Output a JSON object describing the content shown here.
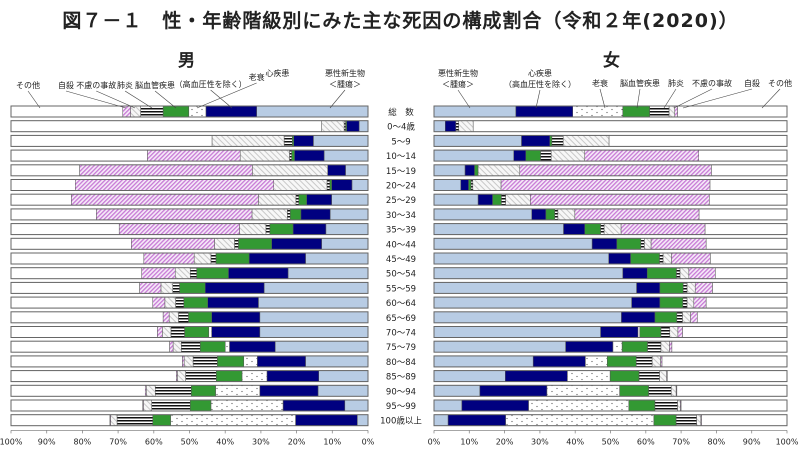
{
  "title": "図７－１　性・年齢階級別にみた主な死因の構成割合（令和２年(2020)）",
  "chart_data": {
    "type": "bar",
    "stacked": true,
    "orientation": "horizontal",
    "title": "図７－１　性・年齢階級別にみた主な死因の構成割合（令和２年(2020)）",
    "categories": [
      "総　数",
      "0～4歳",
      "5～9",
      "10～14",
      "15～19",
      "20～24",
      "25～29",
      "30～34",
      "35～39",
      "40～44",
      "45～49",
      "50～54",
      "55～59",
      "60～64",
      "65～69",
      "70～74",
      "75～79",
      "80～84",
      "85～89",
      "90～94",
      "95～99",
      "100歳以上"
    ],
    "causes": [
      {
        "key": "cancer",
        "label_lines": [
          "悪性新生物",
          "＜腫瘍＞"
        ],
        "color": "#b8cce4",
        "pattern": "solid"
      },
      {
        "key": "heart",
        "label_lines": [
          "心疾患",
          "（高血圧性を除く）"
        ],
        "color": "#000080",
        "pattern": "solid"
      },
      {
        "key": "senility",
        "label_lines": [
          "老衰"
        ],
        "color": "#ffffff",
        "pattern": "dots"
      },
      {
        "key": "stroke",
        "label_lines": [
          "脳血管疾患"
        ],
        "color": "#339933",
        "pattern": "solid"
      },
      {
        "key": "pneumonia",
        "label_lines": [
          "肺炎"
        ],
        "color": "#ffffff",
        "pattern": "hstripes"
      },
      {
        "key": "accident",
        "label_lines": [
          "不慮の事故"
        ],
        "color": "#f2f2f2",
        "pattern": "diag-gray"
      },
      {
        "key": "suicide",
        "label_lines": [
          "自殺"
        ],
        "color": "#f3e6f7",
        "pattern": "diag-pink"
      },
      {
        "key": "other",
        "label_lines": [
          "その他"
        ],
        "color": "#ffffff",
        "pattern": "solid"
      }
    ],
    "panels": [
      {
        "name": "男",
        "direction": "right-to-left",
        "xlim": [
          0,
          100
        ],
        "tick_labels": [
          "100%",
          "90%",
          "80%",
          "70%",
          "60%",
          "50%",
          "40%",
          "30%",
          "20%",
          "10%",
          "0%"
        ],
        "series": [
          {
            "name": "悪性新生物＜腫瘍＞",
            "values": [
              31.2,
              2.5,
              15.3,
              12.3,
              6.3,
              4.5,
              10.2,
              10.6,
              11.8,
              13.0,
              17.5,
              22.4,
              29.1,
              30.7,
              30.3,
              30.3,
              26.0,
              17.5,
              13.8,
              14.0,
              6.5,
              3.0
            ]
          },
          {
            "name": "心疾患（高血圧性を除く）",
            "values": [
              14.2,
              3.5,
              5.5,
              8.3,
              5.0,
              5.7,
              7.0,
              8.2,
              9.2,
              14.0,
              15.8,
              16.7,
              16.5,
              14.2,
              13.5,
              13.5,
              12.8,
              13.5,
              14.5,
              16.3,
              17.3,
              17.3
            ]
          },
          {
            "name": "老衰",
            "values": [
              4.8,
              0,
              0,
              0,
              0,
              0,
              0,
              0,
              0,
              0,
              0,
              0,
              0,
              0,
              0,
              0.8,
              1.2,
              3.8,
              7.0,
              12.4,
              20.2,
              35.0
            ]
          },
          {
            "name": "脳血管疾患",
            "values": [
              7.2,
              0.3,
              0.4,
              0.8,
              0,
              0.5,
              2.2,
              3.0,
              6.5,
              9.3,
              9.3,
              8.9,
              7.2,
              6.7,
              6.5,
              6.8,
              7.0,
              7.4,
              7.2,
              6.8,
              5.8,
              5.0
            ]
          },
          {
            "name": "肺炎",
            "values": [
              6.3,
              0.4,
              2.3,
              0.6,
              0,
              0.8,
              0.8,
              0.8,
              1.1,
              1.1,
              1.4,
              1.8,
              1.9,
              2.3,
              2.8,
              3.8,
              5.3,
              6.8,
              8.6,
              10.1,
              10.8,
              10.0
            ]
          },
          {
            "name": "不慮の事故",
            "values": [
              2.8,
              6.3,
              20.2,
              13.8,
              21.1,
              14.9,
              10.5,
              9.9,
              7.4,
              5.6,
              4.7,
              4.2,
              3.3,
              3.0,
              2.6,
              2.4,
              2.3,
              2.5,
              2.3,
              2.5,
              2.3,
              1.8
            ]
          },
          {
            "name": "自殺",
            "values": [
              2.2,
              0,
              0,
              26.0,
              48.4,
              55.6,
              52.4,
              43.6,
              33.7,
              23.3,
              14.1,
              9.4,
              6.0,
              3.4,
              1.7,
              1.4,
              1.0,
              0.5,
              0.3,
              0.3,
              0.2,
              0.2
            ]
          },
          {
            "name": "その他",
            "values": [
              31.3,
              87.0,
              56.3,
              38.2,
              19.2,
              18.0,
              16.9,
              23.9,
              30.3,
              33.7,
              37.2,
              36.6,
              36.0,
              39.7,
              42.6,
              41.0,
              44.4,
              48.0,
              46.3,
              37.6,
              36.9,
              27.7
            ]
          }
        ]
      },
      {
        "name": "女",
        "direction": "left-to-right",
        "xlim": [
          0,
          100
        ],
        "tick_labels": [
          "0%",
          "10%",
          "20%",
          "30%",
          "40%",
          "50%",
          "60%",
          "70%",
          "80%",
          "90%",
          "100%"
        ],
        "series": [
          {
            "name": "悪性新生物＜腫瘍＞",
            "values": [
              23.2,
              3.2,
              24.8,
              22.6,
              8.8,
              7.6,
              12.5,
              27.7,
              36.7,
              44.8,
              49.5,
              53.5,
              57.4,
              56.0,
              53.1,
              47.2,
              37.3,
              28.1,
              20.2,
              13.0,
              7.9,
              4.0
            ]
          },
          {
            "name": "心疾患（高血圧性を除く）",
            "values": [
              16.1,
              3.0,
              8.0,
              3.4,
              2.7,
              2.2,
              4.1,
              4.0,
              6.0,
              7.0,
              6.2,
              6.9,
              6.6,
              8.0,
              9.5,
              10.6,
              13.4,
              14.8,
              17.6,
              19.0,
              18.9,
              16.3
            ]
          },
          {
            "name": "老衰",
            "values": [
              14.2,
              0,
              0,
              0,
              0,
              0,
              0,
              0,
              0,
              0,
              0,
              0,
              0,
              0,
              0,
              0.5,
              2.6,
              6.2,
              12.1,
              20.6,
              28.4,
              42.0
            ]
          },
          {
            "name": "脳血管疾患",
            "values": [
              7.6,
              0,
              0.6,
              4.2,
              1.0,
              0.7,
              2.5,
              2.5,
              4.5,
              6.8,
              8.2,
              8.3,
              6.6,
              6.5,
              6.2,
              6.0,
              7.2,
              8.2,
              8.2,
              8.2,
              7.4,
              6.3
            ]
          },
          {
            "name": "肺炎",
            "values": [
              5.5,
              0.8,
              3.2,
              3.0,
              0,
              0.5,
              1.2,
              0.9,
              1.0,
              1.0,
              1.0,
              1.0,
              1.1,
              1.2,
              1.6,
              2.5,
              3.8,
              4.5,
              5.8,
              6.4,
              6.4,
              5.8
            ]
          },
          {
            "name": "不慮の事故",
            "values": [
              1.6,
              4.1,
              13.0,
              9.5,
              11.8,
              8.0,
              7.0,
              4.8,
              4.8,
              1.9,
              2.4,
              2.5,
              2.3,
              1.9,
              2.3,
              2.3,
              2.4,
              2.4,
              2.0,
              1.4,
              0.8,
              1.2
            ]
          },
          {
            "name": "自殺",
            "values": [
              0.8,
              0,
              0,
              32.3,
              54.3,
              59.2,
              50.7,
              35.2,
              23.8,
              15.6,
              11.0,
              7.5,
              4.9,
              3.5,
              1.9,
              1.3,
              0.7,
              0.4,
              0.2,
              0.2,
              0.2,
              0.2
            ]
          },
          {
            "name": "その他",
            "values": [
              31.0,
              88.9,
              50.4,
              25.0,
              21.4,
              21.8,
              22.0,
              24.9,
              23.2,
              22.9,
              21.7,
              20.3,
              21.1,
              22.9,
              25.4,
              29.6,
              32.6,
              35.4,
              33.9,
              31.2,
              30.0,
              24.2
            ]
          }
        ]
      }
    ],
    "grid": false,
    "legend": "top (leader-line labels above each panel)"
  }
}
